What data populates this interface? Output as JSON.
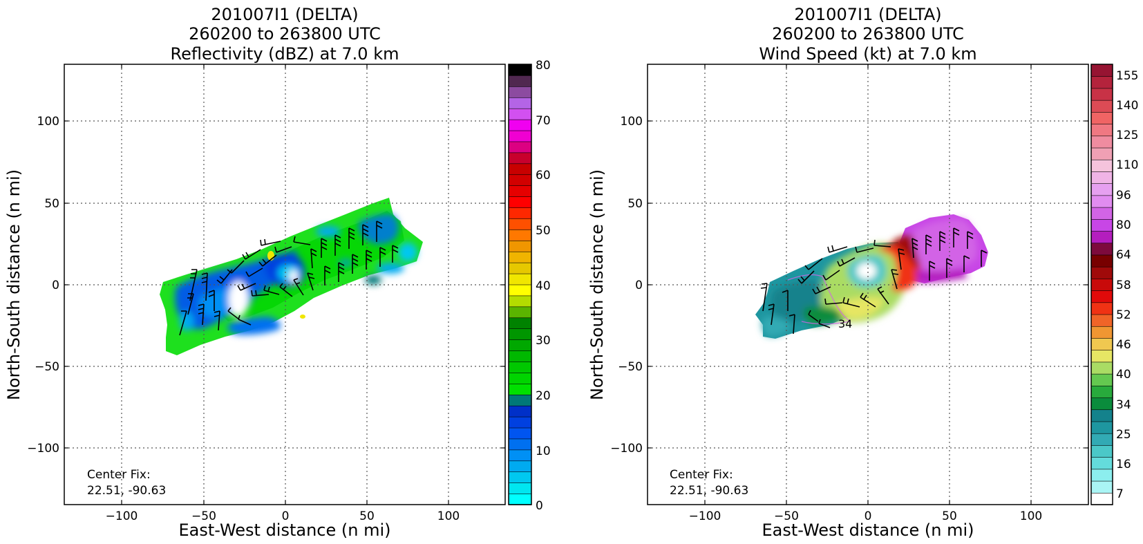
{
  "chart_data": [
    {
      "type": "heatmap",
      "title": [
        "201007I1 (DELTA)",
        "260200 to 263800 UTC",
        "Reflectivity (dBZ) at 7.0 km"
      ],
      "xlabel": "East-West distance (n mi)",
      "ylabel": "North-South distance (n mi)",
      "xlim": [
        -135,
        135
      ],
      "ylim": [
        -135,
        135
      ],
      "xticks": [
        -100,
        -50,
        0,
        50,
        100
      ],
      "yticks": [
        -100,
        -50,
        0,
        50,
        100
      ],
      "tick_labels": [
        "−100",
        "−50",
        "0",
        "50",
        "100"
      ],
      "grid": true,
      "grid_style": "dotted",
      "annotation": [
        "Center Fix:",
        "22.51, -90.63"
      ],
      "colorbar": {
        "min": 0,
        "max": 80,
        "ticks": [
          "0",
          "10",
          "20",
          "30",
          "40",
          "50",
          "60",
          "70",
          "80"
        ],
        "colors": [
          "#00ffff",
          "#00e6f0",
          "#00c8f0",
          "#00aaf0",
          "#0090f5",
          "#0070f0",
          "#0055f0",
          "#0040e0",
          "#0030c8",
          "#007878",
          "#00e000",
          "#00d400",
          "#00c800",
          "#00b800",
          "#00a800",
          "#009600",
          "#008200",
          "#5ab400",
          "#b4dc00",
          "#ffff00",
          "#f0e600",
          "#e6c800",
          "#f0b400",
          "#f09600",
          "#ff7800",
          "#ff5000",
          "#ff2800",
          "#ff0000",
          "#e60000",
          "#d20000",
          "#c80000",
          "#c8002d",
          "#dc0082",
          "#f000d2",
          "#f000f0",
          "#d250f0",
          "#b464e6",
          "#8c4ba0",
          "#502850",
          "#000000"
        ]
      },
      "data_field": {
        "description": "reflectivity swath, mostly 15-25 dBZ with blue low-dBZ pockets",
        "swath_outline_nmi": [
          [
            -75,
            2
          ],
          [
            -60,
            5
          ],
          [
            -45,
            8
          ],
          [
            -30,
            15
          ],
          [
            -15,
            22
          ],
          [
            5,
            30
          ],
          [
            25,
            38
          ],
          [
            45,
            46
          ],
          [
            65,
            52
          ],
          [
            72,
            45
          ],
          [
            80,
            30
          ],
          [
            86,
            20
          ],
          [
            82,
            10
          ],
          [
            70,
            6
          ],
          [
            50,
            2
          ],
          [
            30,
            -5
          ],
          [
            15,
            -15
          ],
          [
            0,
            -22
          ],
          [
            -20,
            -28
          ],
          [
            -40,
            -35
          ],
          [
            -60,
            -42
          ],
          [
            -72,
            -45
          ],
          [
            -76,
            -35
          ],
          [
            -73,
            -20
          ],
          [
            -78,
            -8
          ]
        ]
      }
    },
    {
      "type": "heatmap",
      "title": [
        "201007I1 (DELTA)",
        "260200 to 263800 UTC",
        "Wind Speed (kt) at 7.0 km"
      ],
      "xlabel": "East-West distance (n mi)",
      "ylabel": "North-South distance (n mi)",
      "xlim": [
        -135,
        135
      ],
      "ylim": [
        -135,
        135
      ],
      "xticks": [
        -100,
        -50,
        0,
        50,
        100
      ],
      "yticks": [
        -100,
        -50,
        0,
        50,
        100
      ],
      "tick_labels": [
        "−100",
        "−50",
        "0",
        "50",
        "100"
      ],
      "grid": true,
      "grid_style": "dotted",
      "annotation": [
        "Center Fix:",
        "22.51, -90.63"
      ],
      "contour_label": "34",
      "colorbar": {
        "ticks": [
          "7",
          "16",
          "25",
          "34",
          "40",
          "46",
          "52",
          "58",
          "64",
          "80",
          "96",
          "110",
          "125",
          "140",
          "155"
        ],
        "colors": [
          "#ffffff",
          "#aaf5f5",
          "#8ceeee",
          "#64dcdc",
          "#4bc8c8",
          "#32aab4",
          "#1e96a0",
          "#14828c",
          "#0a8c3c",
          "#28aa3c",
          "#64c850",
          "#aadc64",
          "#e6e664",
          "#f0c850",
          "#f09632",
          "#f06428",
          "#f03214",
          "#e10a0a",
          "#c80a0a",
          "#a00a0a",
          "#780000",
          "#7d0a3c",
          "#b41ebe",
          "#c846e6",
          "#d264e6",
          "#e18cf0",
          "#e6a0f0",
          "#f0b4e6",
          "#f5c3dc",
          "#f0a0b4",
          "#f08ca0",
          "#f07882",
          "#f06464",
          "#dc4b55",
          "#c83246",
          "#b4233c",
          "#961432"
        ]
      },
      "data_field": {
        "description": "wind speed swath, teal/green west, yellow-red ring near center, purple east",
        "swath_outline_nmi": [
          [
            -62,
            2
          ],
          [
            -45,
            10
          ],
          [
            -28,
            18
          ],
          [
            -10,
            25
          ],
          [
            10,
            30
          ],
          [
            22,
            32
          ],
          [
            38,
            40
          ],
          [
            55,
            43
          ],
          [
            65,
            38
          ],
          [
            72,
            22
          ],
          [
            74,
            8
          ],
          [
            60,
            0
          ],
          [
            38,
            -2
          ],
          [
            25,
            -12
          ],
          [
            10,
            -22
          ],
          [
            -10,
            -30
          ],
          [
            -30,
            -35
          ],
          [
            -50,
            -40
          ],
          [
            -60,
            -38
          ],
          [
            -62,
            -25
          ],
          [
            -67,
            -15
          ],
          [
            -62,
            -8
          ]
        ]
      }
    }
  ]
}
